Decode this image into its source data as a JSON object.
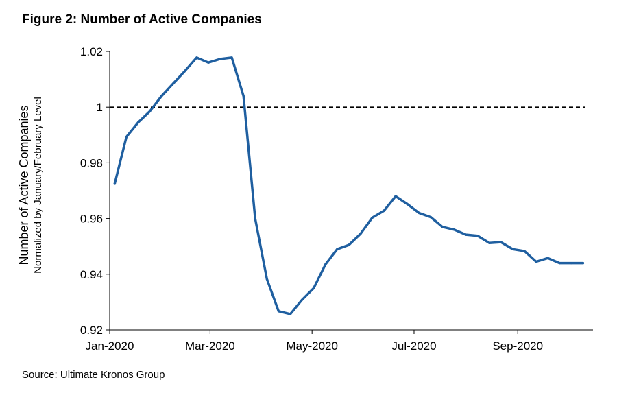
{
  "figure": {
    "title": "Figure 2: Number of Active Companies",
    "source": "Source: Ultimate Kronos Group"
  },
  "chart_data": {
    "type": "line",
    "title": "Figure 2: Number of Active Companies",
    "xlabel": "",
    "ylabel": "Number of Active Companies",
    "ylabel_sub": "Normalized by January/February Level",
    "ylim": [
      0.92,
      1.02
    ],
    "yticks": [
      0.92,
      0.94,
      0.96,
      0.98,
      1,
      1.02
    ],
    "ytick_labels": [
      "0.92",
      "0.94",
      "0.96",
      "0.98",
      "1",
      "1.02"
    ],
    "xlim": [
      "2020-01-01",
      "2020-10-16"
    ],
    "xticks": [
      "2020-01-01",
      "2020-03-01",
      "2020-05-01",
      "2020-07-01",
      "2020-09-01"
    ],
    "xtick_labels": [
      "Jan-2020",
      "Mar-2020",
      "May-2020",
      "Jul-2020",
      "Sep-2020"
    ],
    "reference_line": {
      "y": 1,
      "style": "dashed"
    },
    "grid": false,
    "line_color": "#1f5fa0",
    "series": [
      {
        "x": [
          "2020-01-04",
          "2020-01-11",
          "2020-01-18",
          "2020-01-25",
          "2020-02-01",
          "2020-02-08",
          "2020-02-15",
          "2020-02-22",
          "2020-02-29",
          "2020-03-07",
          "2020-03-14",
          "2020-03-21",
          "2020-03-28",
          "2020-04-04",
          "2020-04-11",
          "2020-04-18",
          "2020-04-25",
          "2020-05-02",
          "2020-05-09",
          "2020-05-16",
          "2020-05-23",
          "2020-05-30",
          "2020-06-06",
          "2020-06-13",
          "2020-06-20",
          "2020-06-27",
          "2020-07-04",
          "2020-07-11",
          "2020-07-18",
          "2020-07-25",
          "2020-08-01",
          "2020-08-08",
          "2020-08-15",
          "2020-08-22",
          "2020-08-29",
          "2020-09-05",
          "2020-09-12",
          "2020-09-19",
          "2020-09-26",
          "2020-10-03",
          "2020-10-10"
        ],
        "y": [
          0.9725,
          0.9893,
          0.9945,
          0.9985,
          1.004,
          1.0085,
          1.013,
          1.0178,
          1.016,
          1.0173,
          1.0178,
          1.004,
          0.96,
          0.9383,
          0.9267,
          0.9257,
          0.9308,
          0.935,
          0.9435,
          0.949,
          0.9505,
          0.9545,
          0.9603,
          0.9628,
          0.968,
          0.9652,
          0.962,
          0.9605,
          0.957,
          0.956,
          0.9542,
          0.9538,
          0.9512,
          0.9515,
          0.949,
          0.9483,
          0.9445,
          0.9458,
          0.944,
          0.944,
          0.944
        ]
      }
    ]
  }
}
